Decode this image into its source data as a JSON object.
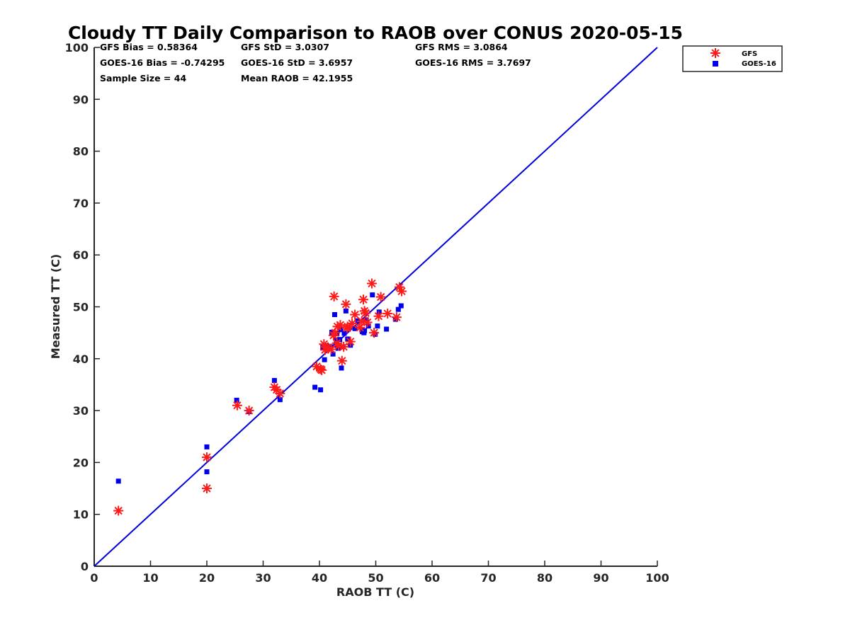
{
  "chart_data": {
    "type": "scatter",
    "title": "Cloudy TT Daily Comparison to RAOB over CONUS 2020-05-15",
    "xlabel": "RAOB TT (C)",
    "ylabel": "Measured TT (C)",
    "xlim": [
      0,
      100
    ],
    "ylim": [
      0,
      100
    ],
    "xticks": [
      "0",
      "10",
      "20",
      "30",
      "40",
      "50",
      "60",
      "70",
      "80",
      "90",
      "100"
    ],
    "yticks": [
      "0",
      "10",
      "20",
      "30",
      "40",
      "50",
      "60",
      "70",
      "80",
      "90",
      "100"
    ],
    "grid": false,
    "legend_position": "outside top-right",
    "reference_line": {
      "x": [
        0,
        100
      ],
      "y": [
        0,
        100
      ],
      "color": "#0000dd"
    },
    "stats": [
      [
        "GFS Bias = 0.58364",
        "GFS StD = 3.0307",
        "GFS RMS = 3.0864"
      ],
      [
        "GOES-16 Bias = -0.74295",
        "GOES-16 StD = 3.6957",
        "GOES-16 RMS = 3.7697"
      ],
      [
        "Sample Size = 44",
        "Mean RAOB = 42.1955",
        ""
      ]
    ],
    "series": [
      {
        "name": "GFS",
        "marker": "asterisk",
        "color": "#ff1a1a",
        "points": [
          [
            4.3,
            10.7
          ],
          [
            20.0,
            21.0
          ],
          [
            20.0,
            15.0
          ],
          [
            25.4,
            31.0
          ],
          [
            27.5,
            30.0
          ],
          [
            32.0,
            34.5
          ],
          [
            32.4,
            34.0
          ],
          [
            33.0,
            33.3
          ],
          [
            39.5,
            38.5
          ],
          [
            40.2,
            38.0
          ],
          [
            40.4,
            37.8
          ],
          [
            40.8,
            42.8
          ],
          [
            41.0,
            41.7
          ],
          [
            41.5,
            42.2
          ],
          [
            42.1,
            41.8
          ],
          [
            42.5,
            44.5
          ],
          [
            42.6,
            52.0
          ],
          [
            42.8,
            45.0
          ],
          [
            43.2,
            46.2
          ],
          [
            43.4,
            42.5
          ],
          [
            43.7,
            46.5
          ],
          [
            44.0,
            39.6
          ],
          [
            44.3,
            42.3
          ],
          [
            44.7,
            50.5
          ],
          [
            45.0,
            46.2
          ],
          [
            45.5,
            43.3
          ],
          [
            45.8,
            46.8
          ],
          [
            46.3,
            48.5
          ],
          [
            47.5,
            47.2
          ],
          [
            47.8,
            51.4
          ],
          [
            48.2,
            48.8
          ],
          [
            48.5,
            47.0
          ],
          [
            49.3,
            54.5
          ],
          [
            49.7,
            45.0
          ],
          [
            50.5,
            48.2
          ],
          [
            50.9,
            51.9
          ],
          [
            52.1,
            48.7
          ],
          [
            53.7,
            48.0
          ],
          [
            54.2,
            53.8
          ],
          [
            54.6,
            53.0
          ],
          [
            43.1,
            43.0
          ],
          [
            44.9,
            45.9
          ],
          [
            47.2,
            46.0
          ],
          [
            48.0,
            49.2
          ]
        ]
      },
      {
        "name": "GOES-16",
        "marker": "square",
        "color": "#0000ee",
        "points": [
          [
            4.3,
            16.4
          ],
          [
            20.0,
            23.0
          ],
          [
            20.0,
            18.2
          ],
          [
            25.3,
            32.0
          ],
          [
            27.5,
            29.8
          ],
          [
            32.0,
            35.8
          ],
          [
            33.0,
            32.1
          ],
          [
            39.2,
            34.5
          ],
          [
            40.2,
            34.0
          ],
          [
            40.6,
            42.2
          ],
          [
            40.9,
            39.8
          ],
          [
            41.3,
            42.5
          ],
          [
            42.0,
            42.3
          ],
          [
            42.4,
            40.9
          ],
          [
            42.7,
            48.5
          ],
          [
            42.9,
            42.6
          ],
          [
            43.1,
            44.8
          ],
          [
            43.3,
            42.0
          ],
          [
            43.6,
            43.7
          ],
          [
            43.9,
            38.2
          ],
          [
            44.1,
            42.3
          ],
          [
            44.4,
            44.9
          ],
          [
            44.7,
            49.2
          ],
          [
            45.1,
            46.0
          ],
          [
            45.5,
            42.6
          ],
          [
            46.3,
            45.8
          ],
          [
            47.6,
            45.2
          ],
          [
            48.0,
            45.4
          ],
          [
            48.3,
            47.5
          ],
          [
            48.7,
            46.3
          ],
          [
            49.4,
            52.3
          ],
          [
            49.9,
            44.7
          ],
          [
            50.3,
            46.3
          ],
          [
            50.6,
            49.0
          ],
          [
            51.9,
            45.7
          ],
          [
            53.5,
            47.6
          ],
          [
            54.0,
            49.5
          ],
          [
            54.5,
            50.2
          ],
          [
            42.2,
            45.1
          ],
          [
            43.8,
            45.6
          ],
          [
            45.0,
            43.8
          ],
          [
            47.9,
            45.0
          ],
          [
            43.0,
            43.6
          ],
          [
            46.8,
            47.3
          ]
        ]
      }
    ]
  }
}
